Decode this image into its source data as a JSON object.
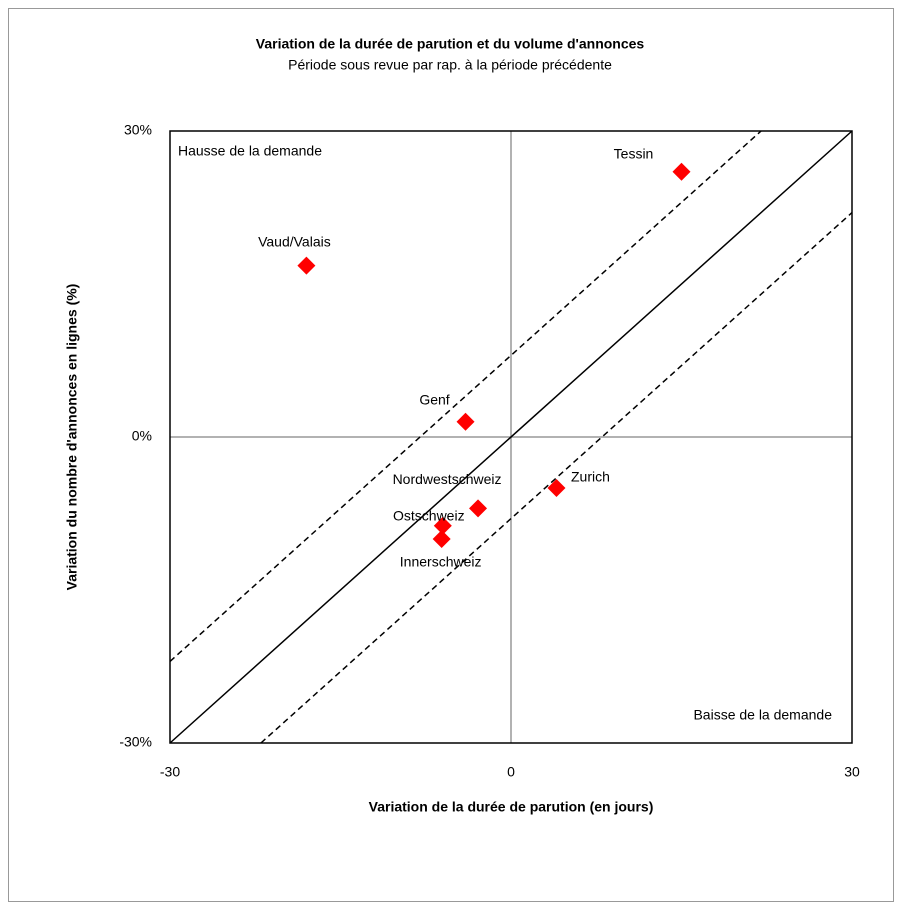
{
  "chart_data": {
    "type": "scatter",
    "title": "Variation de la durée de parution et du volume d'annonces",
    "subtitle": "Période sous revue par rap. à la période précédente",
    "x_label": "Variation de la durée de parution (en  jours)",
    "y_label": "Variation du nombre d'annonces en lignes (%)",
    "annotations": [
      "Hausse de la demande",
      "Baisse de la demande"
    ],
    "color": "#ff0000",
    "points": [
      {
        "label": "Tessin",
        "x": 15,
        "y": 26
      },
      {
        "label": "Vaud/Valais",
        "x": -18,
        "y": 16.8
      },
      {
        "label": "Genf",
        "x": -4,
        "y": 1.5
      },
      {
        "label": "Zurich",
        "x": 4,
        "y": -5
      },
      {
        "label": "Nordwestschweiz",
        "x": -2.9,
        "y": -7
      },
      {
        "label": "Ostschweiz",
        "x": -6,
        "y": -8.7
      },
      {
        "label": "Innerschweiz",
        "x": -6.1,
        "y": -10
      }
    ],
    "reference_lines": [
      {
        "x": [
          -30,
          30
        ],
        "y": [
          -30,
          30
        ],
        "style": "solid"
      },
      {
        "x": [
          -30,
          22
        ],
        "y": [
          -22,
          30
        ],
        "style": "dashed"
      },
      {
        "x": [
          -22,
          30
        ],
        "y": [
          -30,
          22
        ],
        "style": "dashed"
      }
    ],
    "xlim": [
      -30,
      30
    ],
    "xticks": [
      -30,
      0,
      30
    ],
    "ylim": [
      -30,
      30
    ],
    "yticks": [
      {
        "value": -30,
        "label": "-30%"
      },
      {
        "value": 0,
        "label": "0%"
      },
      {
        "value": 30,
        "label": "30%"
      }
    ]
  }
}
